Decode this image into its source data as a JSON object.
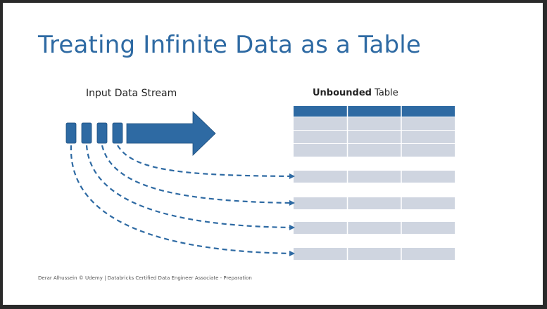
{
  "slide": {
    "title": "Treating Infinite Data as a Table",
    "input_label": "Input Data Stream",
    "table_label_bold": "Unbounded",
    "table_label_rest": " Table",
    "footer": "Derar Alhussein © Udemy | Databricks Certified Data Engineer Associate - Preparation"
  },
  "colors": {
    "accent": "#2e6aa3",
    "table_header": "#2e6aa3",
    "table_cell": "#cfd5e0",
    "cell_border": "#ffffff"
  },
  "diagram": {
    "stream_blocks": 4,
    "table_columns": 3,
    "table_rows_initial": 3,
    "appended_rows": 4
  }
}
